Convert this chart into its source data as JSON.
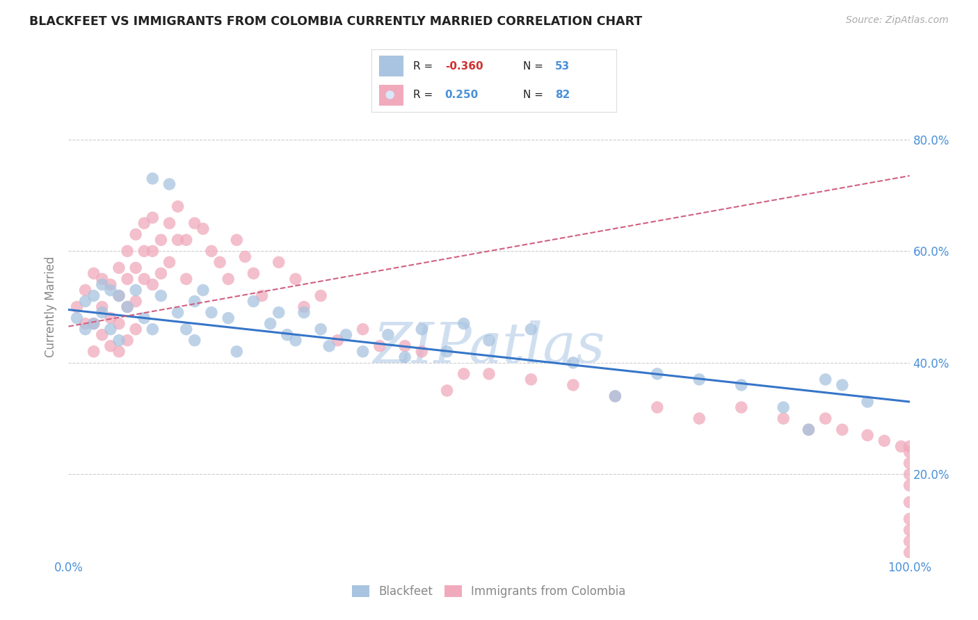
{
  "title": "BLACKFEET VS IMMIGRANTS FROM COLOMBIA CURRENTLY MARRIED CORRELATION CHART",
  "source": "Source: ZipAtlas.com",
  "ylabel": "Currently Married",
  "xlim": [
    0.0,
    1.0
  ],
  "ylim": [
    0.05,
    0.95
  ],
  "ytick_vals": [
    0.2,
    0.4,
    0.6,
    0.8
  ],
  "ytick_labels": [
    "20.0%",
    "40.0%",
    "60.0%",
    "80.0%"
  ],
  "xtick_vals": [
    0.0,
    0.2,
    0.4,
    0.6,
    0.8,
    1.0
  ],
  "xtick_labels": [
    "0.0%",
    "",
    "",
    "",
    "",
    "100.0%"
  ],
  "blue_color": "#a8c4e0",
  "pink_color": "#f0aabb",
  "blue_line_color": "#3575c8",
  "pink_line_color": "#d06080",
  "tick_color": "#4a90d9",
  "axis_label_color": "#888888",
  "title_color": "#222222",
  "grid_color": "#cccccc",
  "watermark_color": "#d0dff0",
  "background_color": "#ffffff",
  "blue_x": [
    0.01,
    0.02,
    0.02,
    0.03,
    0.03,
    0.04,
    0.04,
    0.05,
    0.05,
    0.06,
    0.06,
    0.07,
    0.08,
    0.09,
    0.1,
    0.1,
    0.11,
    0.12,
    0.13,
    0.14,
    0.15,
    0.15,
    0.16,
    0.17,
    0.19,
    0.2,
    0.22,
    0.24,
    0.25,
    0.26,
    0.27,
    0.28,
    0.3,
    0.31,
    0.33,
    0.35,
    0.38,
    0.4,
    0.42,
    0.45,
    0.47,
    0.5,
    0.55,
    0.6,
    0.65,
    0.7,
    0.75,
    0.8,
    0.85,
    0.88,
    0.9,
    0.92,
    0.95
  ],
  "blue_y": [
    0.48,
    0.51,
    0.46,
    0.52,
    0.47,
    0.54,
    0.49,
    0.53,
    0.46,
    0.52,
    0.44,
    0.5,
    0.53,
    0.48,
    0.73,
    0.46,
    0.52,
    0.72,
    0.49,
    0.46,
    0.51,
    0.44,
    0.53,
    0.49,
    0.48,
    0.42,
    0.51,
    0.47,
    0.49,
    0.45,
    0.44,
    0.49,
    0.46,
    0.43,
    0.45,
    0.42,
    0.45,
    0.41,
    0.46,
    0.42,
    0.47,
    0.44,
    0.46,
    0.4,
    0.34,
    0.38,
    0.37,
    0.36,
    0.32,
    0.28,
    0.37,
    0.36,
    0.33
  ],
  "pink_x": [
    0.01,
    0.02,
    0.02,
    0.03,
    0.03,
    0.03,
    0.04,
    0.04,
    0.04,
    0.05,
    0.05,
    0.05,
    0.06,
    0.06,
    0.06,
    0.06,
    0.07,
    0.07,
    0.07,
    0.07,
    0.08,
    0.08,
    0.08,
    0.08,
    0.09,
    0.09,
    0.09,
    0.1,
    0.1,
    0.1,
    0.11,
    0.11,
    0.12,
    0.12,
    0.13,
    0.13,
    0.14,
    0.14,
    0.15,
    0.16,
    0.17,
    0.18,
    0.19,
    0.2,
    0.21,
    0.22,
    0.23,
    0.25,
    0.27,
    0.28,
    0.3,
    0.32,
    0.35,
    0.37,
    0.4,
    0.42,
    0.45,
    0.47,
    0.5,
    0.55,
    0.6,
    0.65,
    0.7,
    0.75,
    0.8,
    0.85,
    0.88,
    0.9,
    0.92,
    0.95,
    0.97,
    0.99,
    1.0,
    1.0,
    1.0,
    1.0,
    1.0,
    1.0,
    1.0,
    1.0,
    1.0,
    1.0
  ],
  "pink_y": [
    0.5,
    0.53,
    0.47,
    0.56,
    0.47,
    0.42,
    0.55,
    0.5,
    0.45,
    0.54,
    0.48,
    0.43,
    0.57,
    0.52,
    0.47,
    0.42,
    0.6,
    0.55,
    0.5,
    0.44,
    0.63,
    0.57,
    0.51,
    0.46,
    0.65,
    0.6,
    0.55,
    0.66,
    0.6,
    0.54,
    0.62,
    0.56,
    0.65,
    0.58,
    0.68,
    0.62,
    0.62,
    0.55,
    0.65,
    0.64,
    0.6,
    0.58,
    0.55,
    0.62,
    0.59,
    0.56,
    0.52,
    0.58,
    0.55,
    0.5,
    0.52,
    0.44,
    0.46,
    0.43,
    0.43,
    0.42,
    0.35,
    0.38,
    0.38,
    0.37,
    0.36,
    0.34,
    0.32,
    0.3,
    0.32,
    0.3,
    0.28,
    0.3,
    0.28,
    0.27,
    0.26,
    0.25,
    0.25,
    0.24,
    0.22,
    0.2,
    0.18,
    0.15,
    0.12,
    0.1,
    0.08,
    0.06
  ],
  "blue_line_x0": 0.0,
  "blue_line_x1": 1.0,
  "blue_line_y0": 0.495,
  "blue_line_y1": 0.33,
  "pink_line_x0": 0.0,
  "pink_line_x1": 1.0,
  "pink_line_y0": 0.465,
  "pink_line_y1": 0.735
}
